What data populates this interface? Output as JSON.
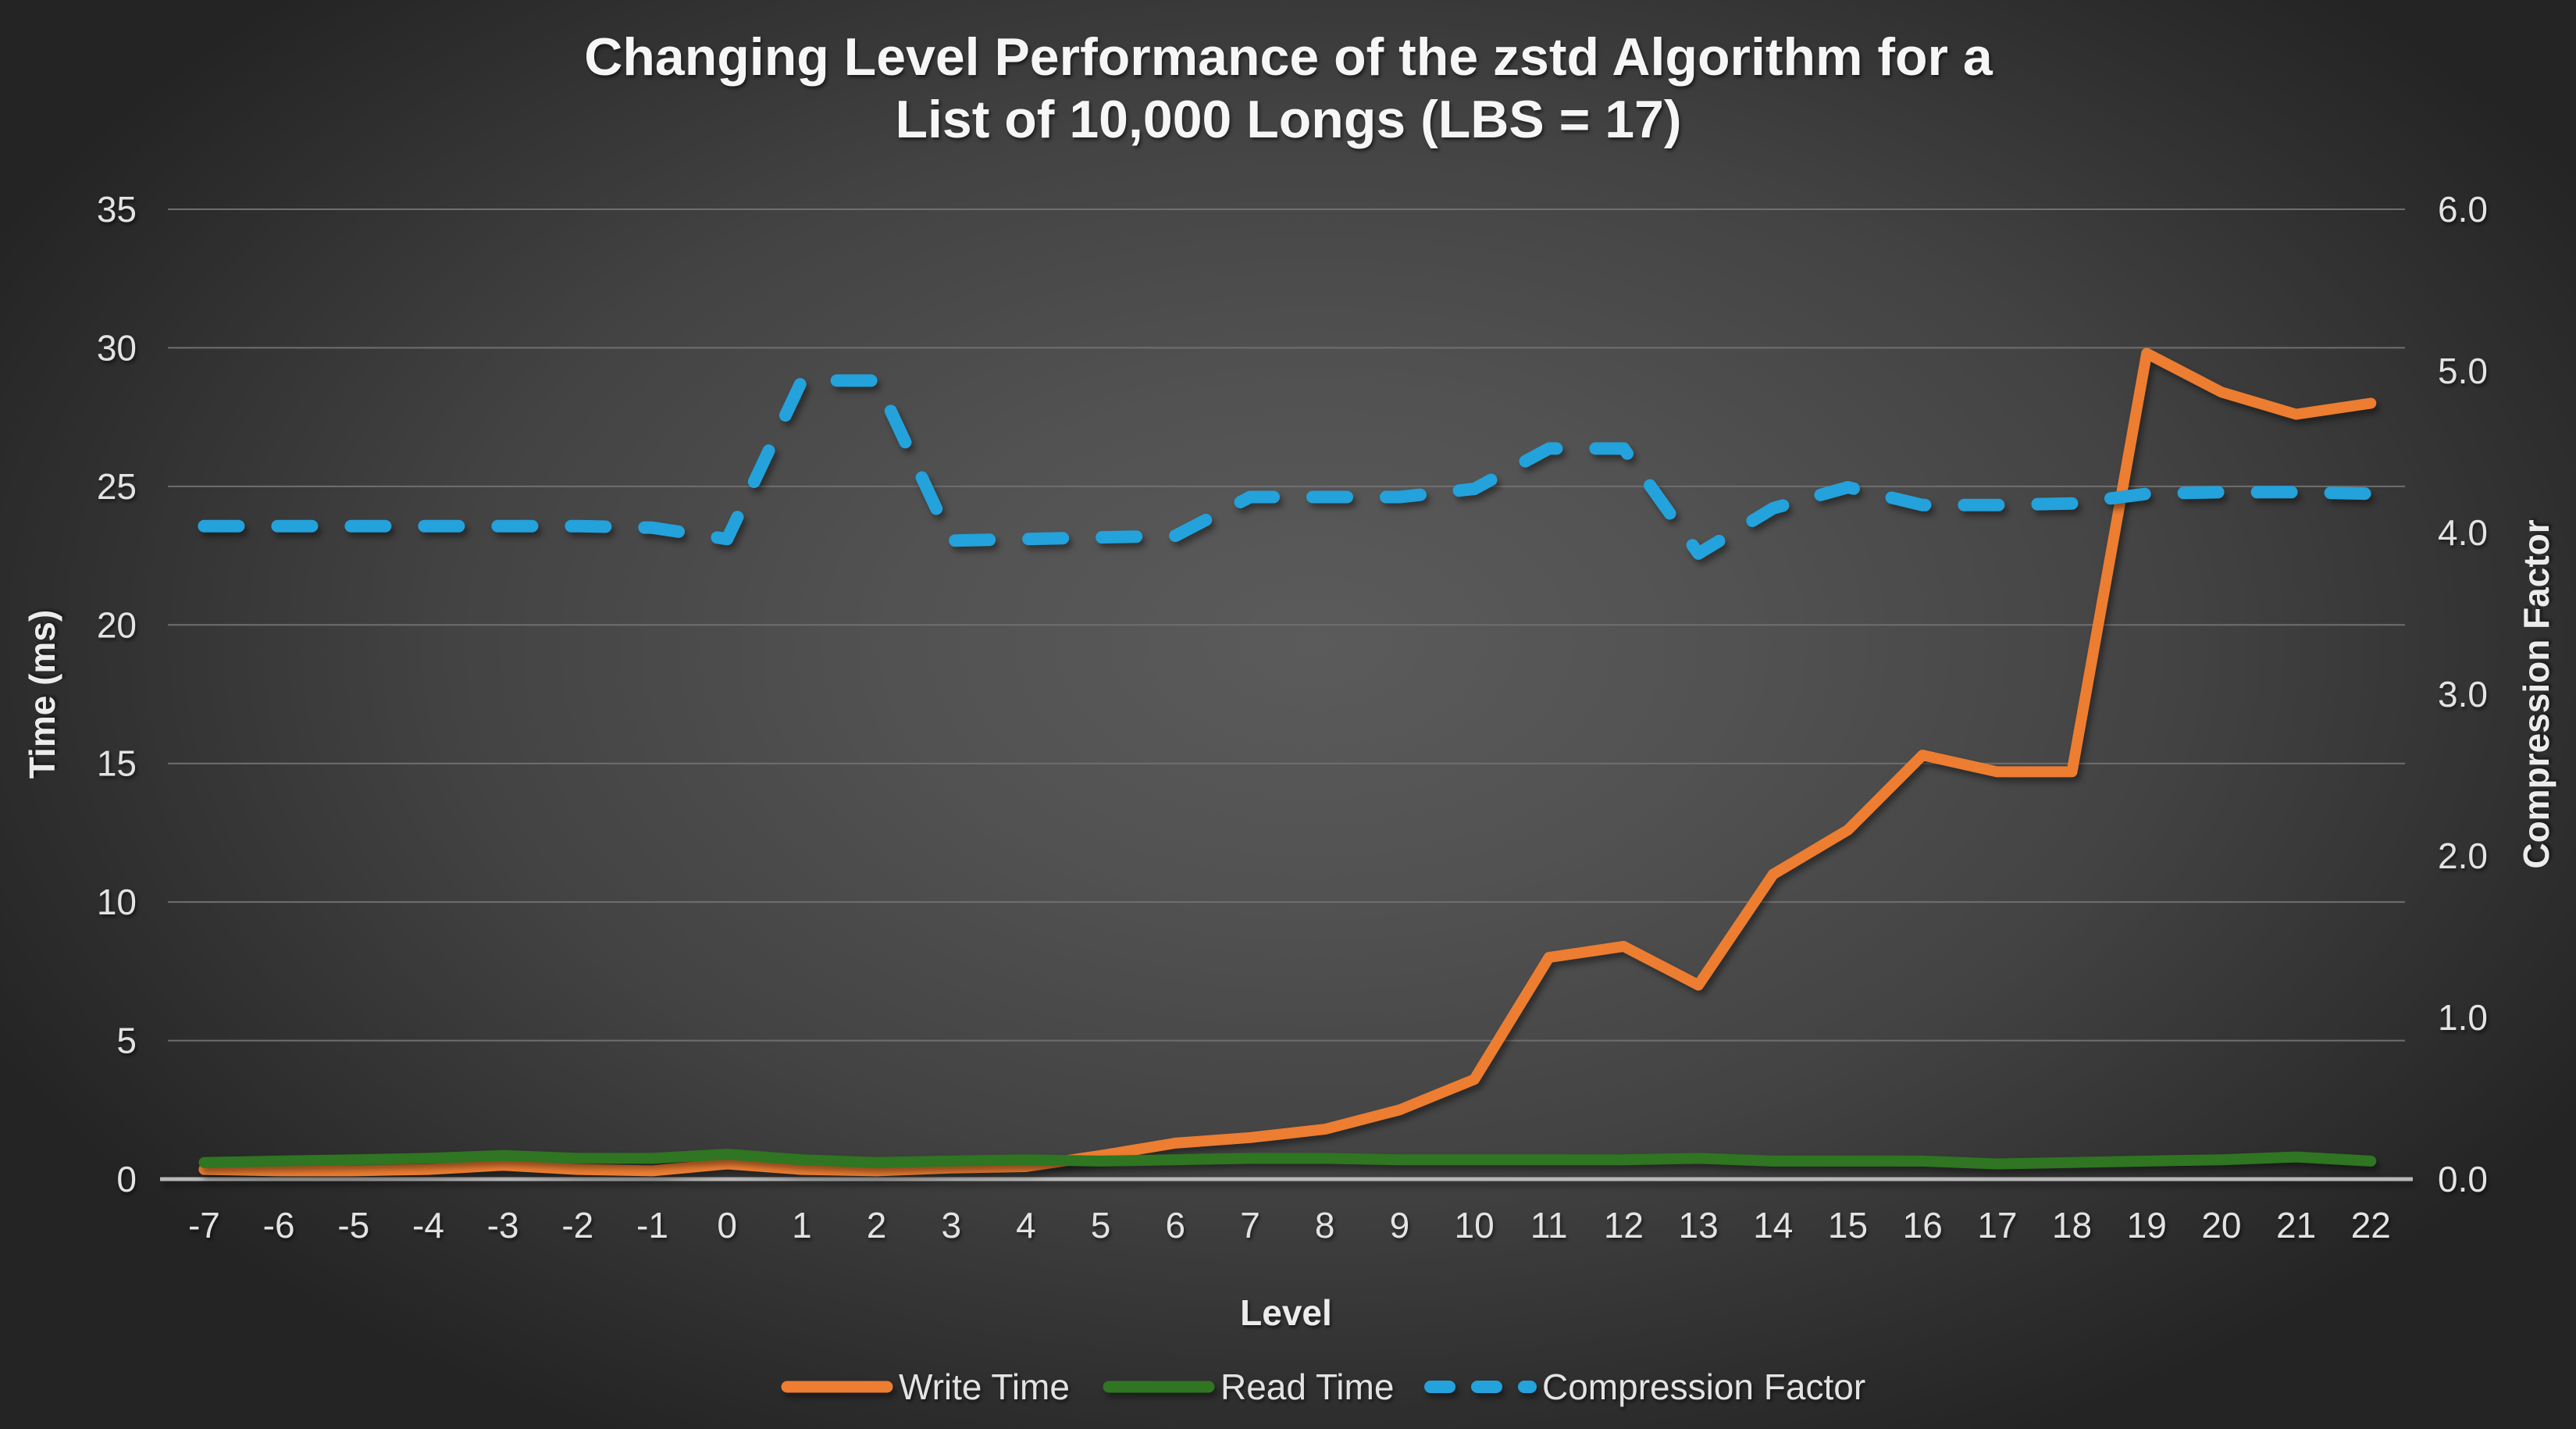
{
  "colors": {
    "background_center": "#5b5b5b",
    "background_edge": "#242424",
    "gridline": "#6F6F6F",
    "axis_line": "#B8B8B8",
    "tick_text": "#E3E3E3",
    "title_text": "#F6F6F6",
    "write_time": "#ED7D31",
    "read_time": "#2F7522",
    "compression_factor": "#23A2DC"
  },
  "chart_data": {
    "type": "line",
    "title": "Changing Level Performance of the zstd Algorithm for a List of 10,000 Longs (LBS = 17)",
    "title_lines": [
      "Changing Level Performance of the zstd Algorithm for a",
      "List of 10,000 Longs (LBS = 17)"
    ],
    "xlabel": "Level",
    "ylabel_left": "Time (ms)",
    "ylabel_right": "Compression Factor",
    "x_tick_labels": [
      "-7",
      "-6",
      "-5",
      "-4",
      "-3",
      "-2",
      "-1",
      "0",
      "1",
      "2",
      "3",
      "4",
      "5",
      "6",
      "7",
      "8",
      "9",
      "10",
      "11",
      "12",
      "13",
      "14",
      "15",
      "16",
      "17",
      "18",
      "19",
      "20",
      "21",
      "22"
    ],
    "y_left_ticks": [
      "0",
      "5",
      "10",
      "15",
      "20",
      "25",
      "30",
      "35"
    ],
    "y_right_ticks": [
      "0.0",
      "1.0",
      "2.0",
      "3.0",
      "4.0",
      "5.0",
      "6.0"
    ],
    "ylim_left": [
      0,
      35
    ],
    "ylim_right": [
      0,
      6
    ],
    "grid": "horizontal-only",
    "legend_position": "bottom",
    "series": [
      {
        "name": "Write Time",
        "axis": "left",
        "style": "solid",
        "color": "#ED7D31",
        "values": [
          0.35,
          0.3,
          0.3,
          0.35,
          0.5,
          0.35,
          0.3,
          0.55,
          0.35,
          0.3,
          0.4,
          0.45,
          0.85,
          1.3,
          1.5,
          1.8,
          2.5,
          3.6,
          8.0,
          8.4,
          7.0,
          11.0,
          12.6,
          15.3,
          14.7,
          14.7,
          29.8,
          28.4,
          27.6,
          28.0
        ]
      },
      {
        "name": "Read Time",
        "axis": "left",
        "style": "solid",
        "color": "#2F7522",
        "values": [
          0.6,
          0.65,
          0.7,
          0.75,
          0.85,
          0.75,
          0.75,
          0.9,
          0.7,
          0.6,
          0.65,
          0.7,
          0.65,
          0.7,
          0.75,
          0.75,
          0.7,
          0.7,
          0.7,
          0.7,
          0.75,
          0.65,
          0.65,
          0.65,
          0.55,
          0.6,
          0.65,
          0.7,
          0.8,
          0.65
        ]
      },
      {
        "name": "Compression Factor",
        "axis": "right",
        "style": "dashed",
        "color": "#23A2DC",
        "values": [
          4.04,
          4.04,
          4.04,
          4.04,
          4.04,
          4.04,
          4.03,
          3.96,
          4.94,
          4.94,
          3.95,
          3.96,
          3.97,
          3.98,
          4.22,
          4.22,
          4.22,
          4.27,
          4.52,
          4.52,
          3.87,
          4.15,
          4.28,
          4.17,
          4.17,
          4.18,
          4.24,
          4.25,
          4.25,
          4.24
        ]
      }
    ]
  }
}
